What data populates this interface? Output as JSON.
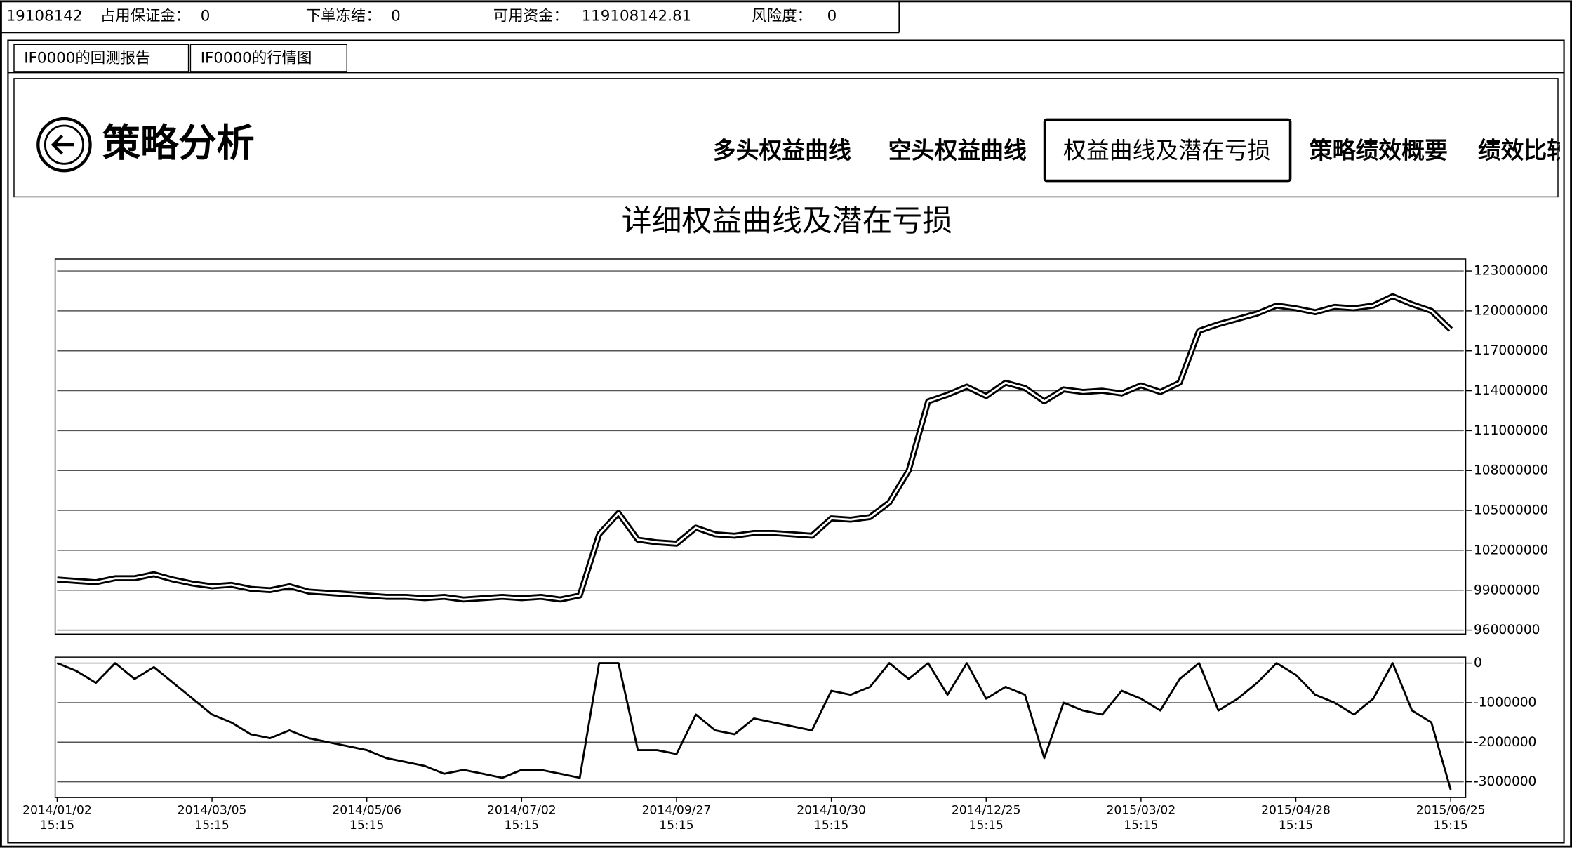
{
  "status_bar": {
    "account": 19108142,
    "items": [
      {
        "label": "占用保证金：",
        "value": 0
      },
      {
        "label": "下单冻结：",
        "value": 0
      },
      {
        "label": "可用资金：",
        "value": 119108142.81
      },
      {
        "label": "风险度：",
        "value": 0
      }
    ]
  },
  "tabs": [
    "IF0000的回测报告",
    "IF0000的行情图"
  ],
  "header": {
    "title": "策略分析"
  },
  "nav": {
    "items": [
      "多头权益曲线",
      "空头权益曲线",
      "权益曲线及潜在亏损",
      "策略绩效概要",
      "绩效比较"
    ],
    "active": 2
  },
  "chart_data": [
    {
      "type": "line",
      "title": "详细权益曲线及潜在亏损",
      "color": "#000000",
      "series": [
        {
          "color": "#000000",
          "values": [
            99800000,
            99700000,
            99600000,
            99900000,
            99900000,
            100200000,
            99800000,
            99500000,
            99300000,
            99400000,
            99100000,
            99000000,
            99300000,
            98900000,
            98800000,
            98700000,
            98600000,
            98500000,
            98500000,
            98400000,
            98500000,
            98300000,
            98400000,
            98500000,
            98400000,
            98500000,
            98300000,
            98600000,
            103200000,
            104800000,
            102800000,
            102600000,
            102500000,
            103700000,
            103200000,
            103100000,
            103300000,
            103300000,
            103200000,
            103100000,
            104400000,
            104300000,
            104500000,
            105600000,
            108000000,
            113200000,
            113700000,
            114300000,
            113600000,
            114600000,
            114200000,
            113200000,
            114100000,
            113900000,
            114000000,
            113800000,
            114400000,
            113900000,
            114600000,
            118500000,
            119000000,
            119400000,
            119800000,
            120400000,
            120200000,
            119900000,
            120300000,
            120200000,
            120400000,
            121100000,
            120500000,
            120000000,
            118600000
          ]
        }
      ],
      "ylim": [
        95700000,
        123900000
      ],
      "yticks": [
        96000000,
        99000000,
        102000000,
        105000000,
        108000000,
        111000000,
        114000000,
        117000000,
        120000000,
        123000000
      ],
      "grid": true
    },
    {
      "type": "line",
      "color": "#000000",
      "categories": [
        "2014/01/02",
        null,
        null,
        null,
        null,
        null,
        null,
        null,
        "2014/03/05",
        null,
        null,
        null,
        null,
        null,
        null,
        null,
        "2014/05/06",
        null,
        null,
        null,
        null,
        null,
        null,
        null,
        "2014/07/02",
        null,
        null,
        null,
        null,
        null,
        null,
        null,
        "2014/09/27",
        null,
        null,
        null,
        null,
        null,
        null,
        null,
        "2014/10/30",
        null,
        null,
        null,
        null,
        null,
        null,
        null,
        "2014/12/25",
        null,
        null,
        null,
        null,
        null,
        null,
        null,
        "2015/03/02",
        null,
        null,
        null,
        null,
        null,
        null,
        null,
        "2015/04/28",
        null,
        null,
        null,
        null,
        null,
        null,
        null,
        "2015/06/25"
      ],
      "category_time": "15:15",
      "series": [
        {
          "color": "#000000",
          "values": [
            0,
            -200000,
            -500000,
            0,
            -400000,
            -100000,
            -500000,
            -900000,
            -1300000,
            -1500000,
            -1800000,
            -1900000,
            -1700000,
            -1900000,
            -2000000,
            -2100000,
            -2200000,
            -2400000,
            -2500000,
            -2600000,
            -2800000,
            -2700000,
            -2800000,
            -2900000,
            -2700000,
            -2700000,
            -2800000,
            -2900000,
            0,
            0,
            -2200000,
            -2200000,
            -2300000,
            -1300000,
            -1700000,
            -1800000,
            -1400000,
            -1500000,
            -1600000,
            -1700000,
            -700000,
            -800000,
            -600000,
            0,
            -400000,
            0,
            -800000,
            0,
            -900000,
            -600000,
            -800000,
            -2400000,
            -1000000,
            -1200000,
            -1300000,
            -700000,
            -900000,
            -1200000,
            -400000,
            0,
            -1200000,
            -900000,
            -500000,
            0,
            -300000,
            -800000,
            -1000000,
            -1300000,
            -900000,
            0,
            -1200000,
            -1500000,
            -3200000
          ]
        }
      ],
      "ylim": [
        -3400000,
        150000
      ],
      "yticks": [
        0,
        -1000000,
        -2000000,
        -3000000
      ],
      "grid": true
    }
  ]
}
